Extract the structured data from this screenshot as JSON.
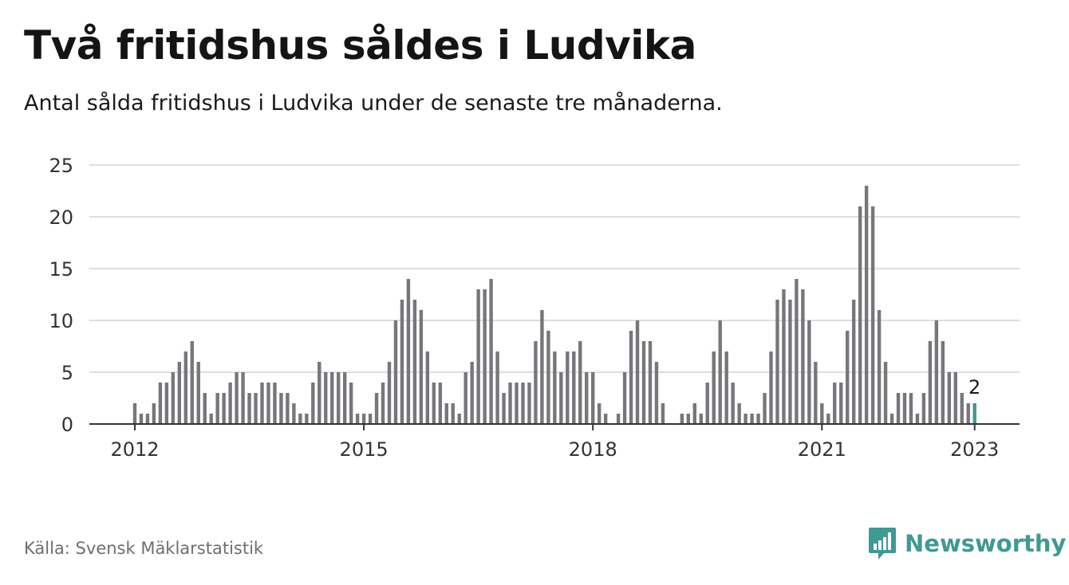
{
  "header": {
    "title": "Två fritidshus såldes i Ludvika",
    "subtitle": "Antal sålda fritidshus i Ludvika under de senaste tre månaderna."
  },
  "footer": {
    "source": "Källa: Svensk Mäklarstatistik",
    "brand": "Newsworthy",
    "brand_icon": "bar-chart-speech-bubble-icon"
  },
  "colors": {
    "bar": "#77767b",
    "highlight": "#3d9a94",
    "gridline": "#dedede",
    "axis": "#333333"
  },
  "chart_data": {
    "type": "bar",
    "title": "Två fritidshus såldes i Ludvika",
    "subtitle": "Antal sålda fritidshus i Ludvika under de senaste tre månaderna.",
    "xlabel": "",
    "ylabel": "",
    "ylim": [
      0,
      25
    ],
    "yticks": [
      0,
      5,
      10,
      15,
      20,
      25
    ],
    "xticks": [
      "2012",
      "2015",
      "2018",
      "2021",
      "2023"
    ],
    "grid": true,
    "legend": "none",
    "start_month": "2012-01",
    "end_month": "2023-01",
    "values": [
      2,
      1,
      1,
      2,
      4,
      4,
      5,
      6,
      7,
      8,
      6,
      3,
      1,
      3,
      3,
      4,
      5,
      5,
      3,
      3,
      4,
      4,
      4,
      3,
      3,
      2,
      1,
      1,
      4,
      6,
      5,
      5,
      5,
      5,
      4,
      1,
      1,
      1,
      3,
      4,
      6,
      10,
      12,
      14,
      12,
      11,
      7,
      4,
      4,
      2,
      2,
      1,
      5,
      6,
      13,
      13,
      14,
      7,
      3,
      4,
      4,
      4,
      4,
      8,
      11,
      9,
      7,
      5,
      7,
      7,
      8,
      5,
      5,
      2,
      1,
      0,
      1,
      5,
      9,
      10,
      8,
      8,
      6,
      2,
      0,
      0,
      1,
      1,
      2,
      1,
      4,
      7,
      10,
      7,
      4,
      2,
      1,
      1,
      1,
      3,
      7,
      12,
      13,
      12,
      14,
      13,
      10,
      6,
      2,
      1,
      4,
      4,
      9,
      12,
      21,
      23,
      21,
      11,
      6,
      1,
      3,
      3,
      3,
      1,
      3,
      8,
      10,
      8,
      5,
      5,
      3,
      2,
      2
    ],
    "highlight_last": true,
    "last_label": "2"
  }
}
